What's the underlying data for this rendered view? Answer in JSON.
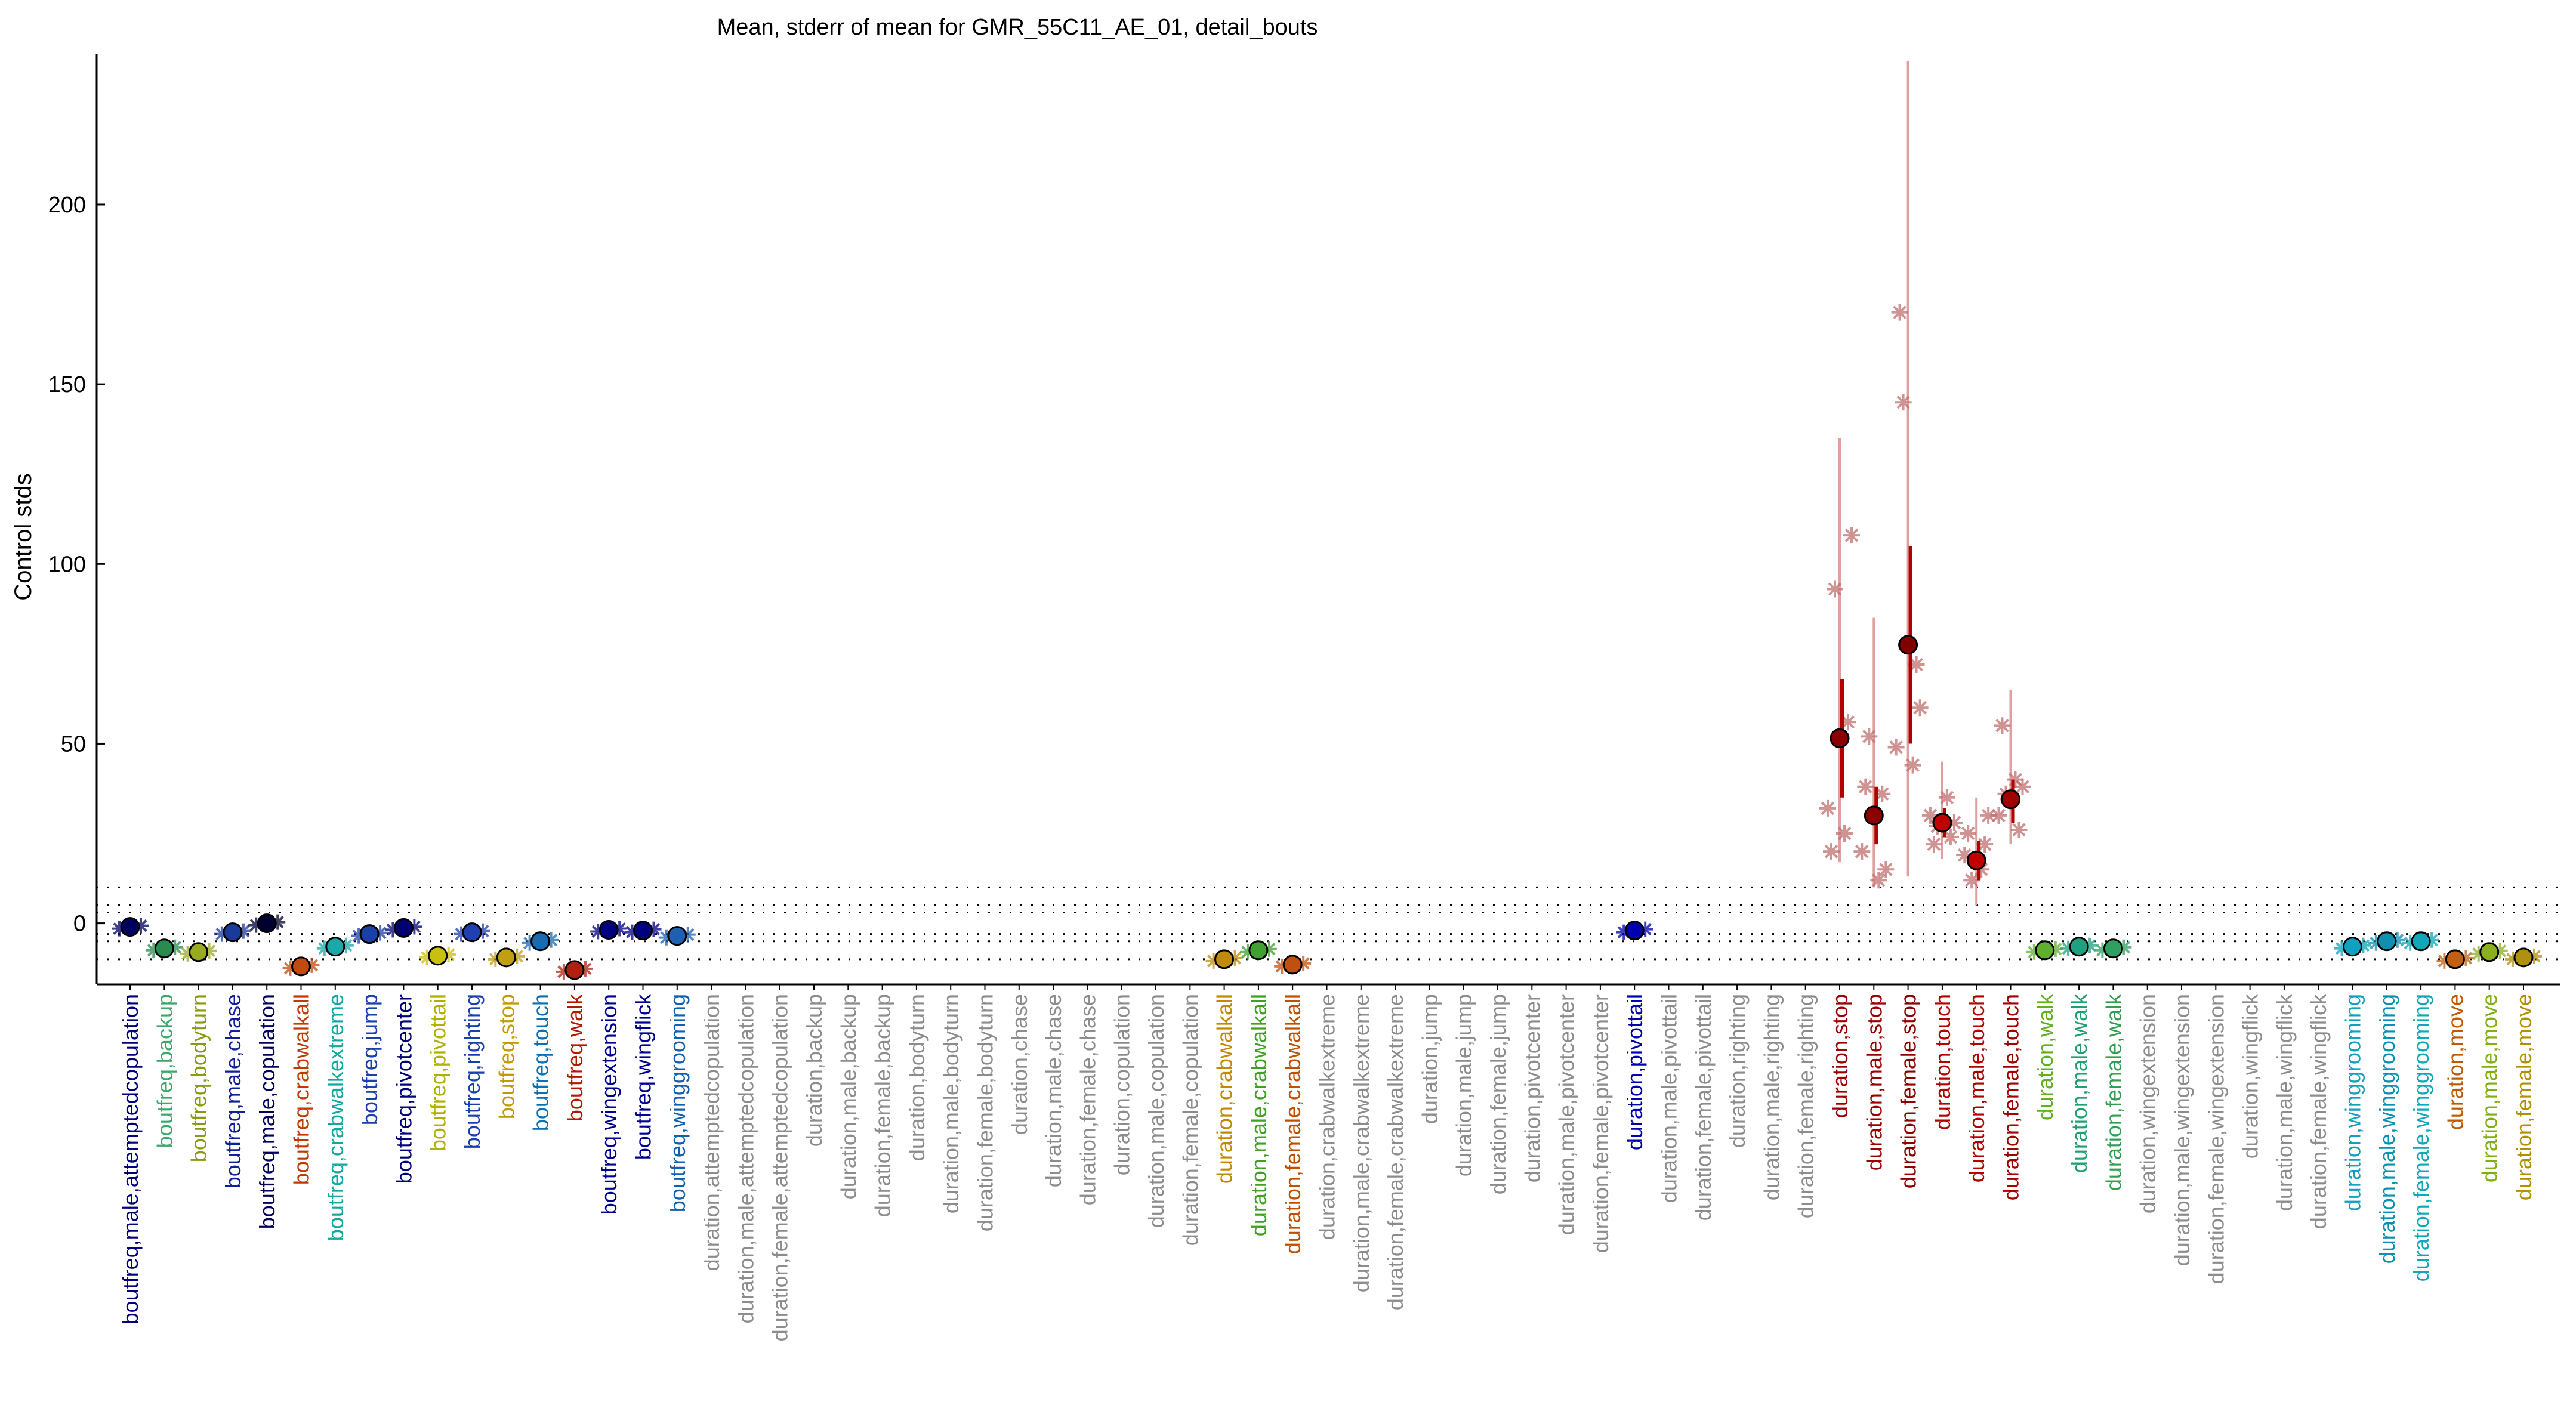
{
  "chart_data": {
    "type": "scatter",
    "title": "Mean, stderr of mean for GMR_55C11_AE_01, detail_bouts",
    "xlabel": "",
    "ylabel": "Control stds",
    "ylim": [
      -17,
      242
    ],
    "yticks": [
      0,
      50,
      100,
      150,
      200
    ],
    "reference_lines": [
      -10,
      -5,
      -3,
      3,
      5,
      10
    ],
    "grid": false,
    "legend": "none",
    "categories": [
      "boutfreq,male,attemptedcopulation",
      "boutfreq,backup",
      "boutfreq,bodyturn",
      "boutfreq,male,chase",
      "boutfreq,male,copulation",
      "boutfreq,crabwalkall",
      "boutfreq,crabwalkextreme",
      "boutfreq,jump",
      "boutfreq,pivotcenter",
      "boutfreq,pivottail",
      "boutfreq,righting",
      "boutfreq,stop",
      "boutfreq,touch",
      "boutfreq,walk",
      "boutfreq,wingextension",
      "boutfreq,wingflick",
      "boutfreq,winggrooming",
      "duration,attemptedcopulation",
      "duration,male,attemptedcopulation",
      "duration,female,attemptedcopulation",
      "duration,backup",
      "duration,male,backup",
      "duration,female,backup",
      "duration,bodyturn",
      "duration,male,bodyturn",
      "duration,female,bodyturn",
      "duration,chase",
      "duration,male,chase",
      "duration,female,chase",
      "duration,copulation",
      "duration,male,copulation",
      "duration,female,copulation",
      "duration,crabwalkall",
      "duration,male,crabwalkall",
      "duration,female,crabwalkall",
      "duration,crabwalkextreme",
      "duration,male,crabwalkextreme",
      "duration,female,crabwalkextreme",
      "duration,jump",
      "duration,male,jump",
      "duration,female,jump",
      "duration,pivotcenter",
      "duration,male,pivotcenter",
      "duration,female,pivotcenter",
      "duration,pivottail",
      "duration,male,pivottail",
      "duration,female,pivottail",
      "duration,righting",
      "duration,male,righting",
      "duration,female,righting",
      "duration,stop",
      "duration,male,stop",
      "duration,female,stop",
      "duration,touch",
      "duration,male,touch",
      "duration,female,touch",
      "duration,walk",
      "duration,male,walk",
      "duration,female,walk",
      "duration,wingextension",
      "duration,male,wingextension",
      "duration,female,wingextension",
      "duration,wingflick",
      "duration,male,wingflick",
      "duration,female,wingflick",
      "duration,winggrooming",
      "duration,male,winggrooming",
      "duration,female,winggrooming",
      "duration,move",
      "duration,male,move",
      "duration,female,move"
    ],
    "label_colors": [
      "#00007a",
      "#3aa86a",
      "#8a9a10",
      "#10209a",
      "#00005a",
      "#c03a00",
      "#10a8a0",
      "#1a40b0",
      "#00007a",
      "#b0b000",
      "#1a40b0",
      "#c09a00",
      "#0a70b0",
      "#b01a00",
      "#000090",
      "#000090",
      "#1060b0",
      "#8c8c8c",
      "#8c8c8c",
      "#8c8c8c",
      "#8c8c8c",
      "#8c8c8c",
      "#8c8c8c",
      "#8c8c8c",
      "#8c8c8c",
      "#8c8c8c",
      "#8c8c8c",
      "#8c8c8c",
      "#8c8c8c",
      "#8c8c8c",
      "#8c8c8c",
      "#8c8c8c",
      "#c08a00",
      "#40a020",
      "#c05000",
      "#8c8c8c",
      "#8c8c8c",
      "#8c8c8c",
      "#8c8c8c",
      "#8c8c8c",
      "#8c8c8c",
      "#8c8c8c",
      "#8c8c8c",
      "#8c8c8c",
      "#0000b0",
      "#8c8c8c",
      "#8c8c8c",
      "#8c8c8c",
      "#8c8c8c",
      "#8c8c8c",
      "#9a0000",
      "#9a0000",
      "#8a0000",
      "#b00000",
      "#b00000",
      "#a00000",
      "#60b020",
      "#20a070",
      "#30a050",
      "#8c8c8c",
      "#8c8c8c",
      "#8c8c8c",
      "#8c8c8c",
      "#8c8c8c",
      "#8c8c8c",
      "#10a0c0",
      "#0890b0",
      "#10a8b8",
      "#c05a00",
      "#80b010",
      "#b09000"
    ],
    "values": [
      -1,
      -7,
      -8,
      -2.5,
      0,
      -12,
      -6.5,
      -3,
      -1.3,
      -9,
      -2.5,
      -9.5,
      -5,
      -13,
      -1.8,
      -2,
      -3.5,
      null,
      null,
      null,
      null,
      null,
      null,
      null,
      null,
      null,
      null,
      null,
      null,
      null,
      null,
      null,
      -10,
      -7.5,
      -11.5,
      null,
      null,
      null,
      null,
      null,
      null,
      null,
      null,
      null,
      -2,
      null,
      null,
      null,
      null,
      null,
      51.5,
      30,
      77.5,
      28,
      17.5,
      34.5,
      -7.5,
      -6.5,
      -7,
      null,
      null,
      null,
      null,
      null,
      null,
      -6.5,
      -5,
      -5,
      -10,
      -8,
      -9.5
    ],
    "sem_low": [
      null,
      null,
      null,
      null,
      null,
      null,
      null,
      null,
      null,
      null,
      null,
      null,
      null,
      null,
      null,
      null,
      null,
      null,
      null,
      null,
      null,
      null,
      null,
      null,
      null,
      null,
      null,
      null,
      null,
      null,
      null,
      null,
      null,
      null,
      null,
      null,
      null,
      null,
      null,
      null,
      null,
      null,
      null,
      null,
      null,
      null,
      null,
      null,
      null,
      null,
      35,
      22,
      50,
      24,
      12,
      28,
      null,
      null,
      null,
      null,
      null,
      null,
      null,
      null,
      null,
      null,
      null,
      null,
      null,
      null,
      null
    ],
    "sem_high": [
      null,
      null,
      null,
      null,
      null,
      null,
      null,
      null,
      null,
      null,
      null,
      null,
      null,
      null,
      null,
      null,
      null,
      null,
      null,
      null,
      null,
      null,
      null,
      null,
      null,
      null,
      null,
      null,
      null,
      null,
      null,
      null,
      null,
      null,
      null,
      null,
      null,
      null,
      null,
      null,
      null,
      null,
      null,
      null,
      null,
      null,
      null,
      null,
      null,
      null,
      68,
      38,
      105,
      32,
      23,
      40,
      null,
      null,
      null,
      null,
      null,
      null,
      null,
      null,
      null,
      null,
      null,
      null,
      null,
      null,
      null
    ],
    "range_low": [
      null,
      null,
      null,
      null,
      null,
      null,
      null,
      null,
      null,
      null,
      null,
      null,
      null,
      null,
      null,
      null,
      null,
      null,
      null,
      null,
      null,
      null,
      null,
      null,
      null,
      null,
      null,
      null,
      null,
      null,
      null,
      null,
      null,
      null,
      null,
      null,
      null,
      null,
      null,
      null,
      null,
      null,
      null,
      null,
      null,
      null,
      null,
      null,
      null,
      null,
      17,
      10,
      13,
      18,
      5,
      22,
      null,
      null,
      null,
      null,
      null,
      null,
      null,
      null,
      null,
      null,
      null,
      null,
      null,
      null,
      null
    ],
    "range_high": [
      null,
      null,
      null,
      null,
      null,
      null,
      null,
      null,
      null,
      null,
      null,
      null,
      null,
      null,
      null,
      null,
      null,
      null,
      null,
      null,
      null,
      null,
      null,
      null,
      null,
      null,
      null,
      null,
      null,
      null,
      null,
      null,
      null,
      null,
      null,
      null,
      null,
      null,
      null,
      null,
      null,
      null,
      null,
      null,
      null,
      null,
      null,
      null,
      null,
      null,
      135,
      85,
      240,
      45,
      35,
      65,
      null,
      null,
      null,
      null,
      null,
      null,
      null,
      null,
      null,
      null,
      null,
      null,
      null,
      null,
      null
    ],
    "marker_colors": [
      "#000060",
      "#2a8a50",
      "#9aaa20",
      "#1a3a9a",
      "#000030",
      "#c04a10",
      "#1aa8a8",
      "#1a40a8",
      "#000070",
      "#c8c010",
      "#2040b0",
      "#c0a010",
      "#1a6ab0",
      "#b02010",
      "#000080",
      "#000080",
      "#2060b0",
      null,
      null,
      null,
      null,
      null,
      null,
      null,
      null,
      null,
      null,
      null,
      null,
      null,
      null,
      null,
      "#c08a10",
      "#40a030",
      "#c05010",
      null,
      null,
      null,
      null,
      null,
      null,
      null,
      null,
      null,
      "#0000b0",
      null,
      null,
      null,
      null,
      null,
      "#8a0000",
      "#8a0000",
      "#800000",
      "#c00000",
      "#c00000",
      "#a00000",
      "#60b030",
      "#20a080",
      "#30a060",
      null,
      null,
      null,
      null,
      null,
      null,
      "#10a0c0",
      "#1090b0",
      "#10a8b8",
      "#c06010",
      "#8ab020",
      "#b09010"
    ],
    "individual_points": [
      [],
      [],
      [],
      [],
      [],
      [],
      [],
      [],
      [],
      [],
      [],
      [],
      [],
      [],
      [],
      [],
      [],
      [],
      [],
      [],
      [],
      [],
      [],
      [],
      [],
      [],
      [],
      [],
      [],
      [],
      [],
      [],
      [],
      [],
      [],
      [],
      [],
      [],
      [],
      [],
      [],
      [],
      [],
      [],
      [],
      [],
      [],
      [],
      [],
      [],
      [
        93,
        56,
        32,
        25,
        20,
        108
      ],
      [
        52,
        36,
        20,
        12,
        38,
        15
      ],
      [
        145,
        72,
        49,
        44,
        170,
        60
      ],
      [
        27,
        24,
        30,
        35,
        22,
        28
      ],
      [
        12,
        22,
        19,
        15,
        25,
        30
      ],
      [
        36,
        26,
        30,
        40,
        55,
        38
      ],
      [],
      [],
      [],
      [],
      [],
      [],
      [],
      [],
      [],
      [],
      [],
      [],
      [],
      [],
      []
    ]
  }
}
